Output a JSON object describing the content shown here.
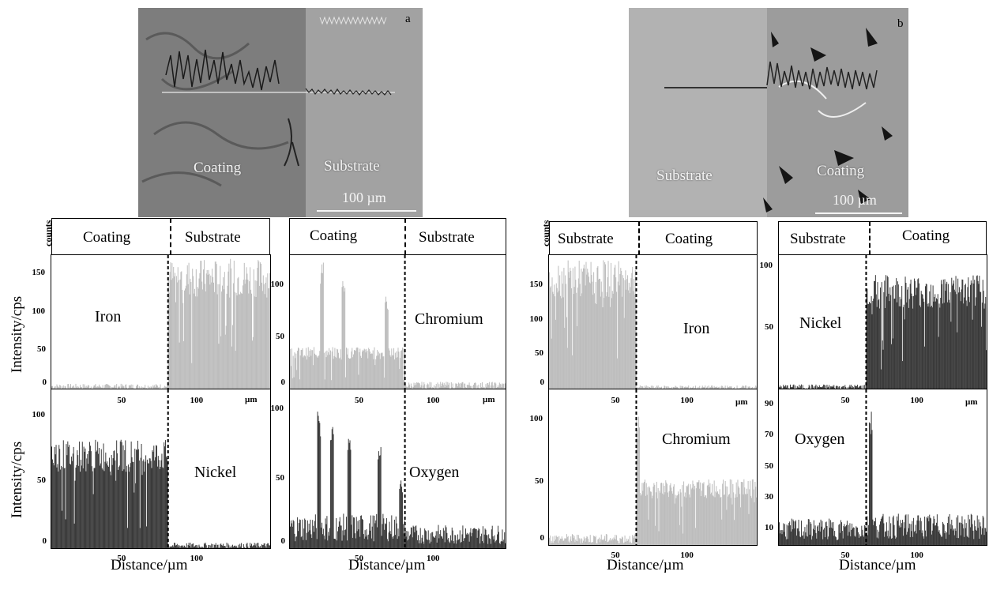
{
  "figures": {
    "a": {
      "letter": "a",
      "left_region": "Coating",
      "right_region": "Substrate",
      "scale_bar": "100 µm",
      "header_left": "Coating",
      "header_right": "Substrate",
      "header_left2": "Coating",
      "header_right2": "Substrate"
    },
    "b": {
      "letter": "b",
      "left_region": "Substrate",
      "right_region": "Coating",
      "scale_bar": "100 µm",
      "header_left": "Substrate",
      "header_right": "Coating",
      "header_left2": "Substrate",
      "header_right2": "Coating"
    }
  },
  "labels": {
    "counts": "counts",
    "ylabel": "Intensity/cps",
    "xlabel": "Distance/µm",
    "unit": "µm"
  },
  "colors": {
    "light": "#bdbdbd",
    "dark": "#3a3a3a"
  },
  "chart_data": [
    {
      "type": "bar",
      "panel": "a-iron",
      "series_name": "Iron",
      "xlim": [
        0,
        150
      ],
      "ylim": [
        0,
        175
      ],
      "x_ticks": [],
      "y_ticks": [
        "150",
        "100",
        "50",
        "0"
      ],
      "boundary_x": 80,
      "levels": [
        {
          "from": 0,
          "to": 80,
          "value": 4
        },
        {
          "from": 80,
          "to": 150,
          "value": 145
        }
      ],
      "color": "light"
    },
    {
      "type": "bar",
      "panel": "a-chromium",
      "series_name": "Chromium",
      "xlim": [
        0,
        150
      ],
      "ylim": [
        0,
        130
      ],
      "x_ticks": [],
      "y_ticks": [
        "100",
        "50",
        "0"
      ],
      "boundary_x": 80,
      "levels": [
        {
          "from": 0,
          "to": 80,
          "value": 35
        },
        {
          "from": 80,
          "to": 150,
          "value": 4
        }
      ],
      "peaks": [
        [
          22,
          125
        ],
        [
          37,
          115
        ],
        [
          67,
          95
        ]
      ],
      "color": "light"
    },
    {
      "type": "bar",
      "panel": "a-nickel",
      "series_name": "Nickel",
      "xlim": [
        0,
        150
      ],
      "ylim": [
        0,
        120
      ],
      "x_ticks": [
        "50",
        "100"
      ],
      "y_ticks": [
        "100",
        "50",
        "0"
      ],
      "boundary_x": 80,
      "levels": [
        {
          "from": 0,
          "to": 80,
          "value": 70
        },
        {
          "from": 80,
          "to": 150,
          "value": 2
        }
      ],
      "color": "dark"
    },
    {
      "type": "bar",
      "panel": "a-oxygen",
      "series_name": "Oxygen",
      "xlim": [
        0,
        150
      ],
      "ylim": [
        0,
        115
      ],
      "x_ticks": [
        "50",
        "100"
      ],
      "y_ticks": [
        "100",
        "50",
        "0"
      ],
      "boundary_x": 80,
      "levels": [
        {
          "from": 0,
          "to": 80,
          "value": 15
        },
        {
          "from": 80,
          "to": 150,
          "value": 10
        }
      ],
      "peaks": [
        [
          20,
          100
        ],
        [
          29,
          90
        ],
        [
          41,
          80
        ],
        [
          62,
          78
        ],
        [
          77,
          50
        ]
      ],
      "color": "dark"
    },
    {
      "type": "bar",
      "panel": "b-iron",
      "series_name": "Iron",
      "xlim": [
        0,
        150
      ],
      "ylim": [
        0,
        195
      ],
      "x_ticks": [],
      "y_ticks": [
        "150",
        "100",
        "50",
        "0"
      ],
      "boundary_x": 63,
      "levels": [
        {
          "from": 0,
          "to": 63,
          "value": 160
        },
        {
          "from": 63,
          "to": 150,
          "value": 3
        }
      ],
      "color": "light"
    },
    {
      "type": "bar",
      "panel": "b-nickel",
      "series_name": "Nickel",
      "xlim": [
        0,
        150
      ],
      "ylim": [
        0,
        110
      ],
      "x_ticks": [],
      "y_ticks": [
        "100",
        "50"
      ],
      "boundary_x": 63,
      "levels": [
        {
          "from": 0,
          "to": 63,
          "value": 2
        },
        {
          "from": 63,
          "to": 150,
          "value": 80
        }
      ],
      "color": "dark"
    },
    {
      "type": "bar",
      "panel": "b-chromium",
      "series_name": "Chromium",
      "xlim": [
        0,
        150
      ],
      "ylim": [
        0,
        125
      ],
      "x_ticks": [
        "50",
        "100"
      ],
      "y_ticks": [
        "100",
        "50",
        "0"
      ],
      "boundary_x": 63,
      "levels": [
        {
          "from": 0,
          "to": 63,
          "value": 5
        },
        {
          "from": 63,
          "to": 150,
          "value": 45
        }
      ],
      "peaks": [
        [
          64,
          105
        ]
      ],
      "color": "light"
    },
    {
      "type": "bar",
      "panel": "b-oxygen",
      "series_name": "Oxygen",
      "xlim": [
        0,
        150
      ],
      "ylim": [
        0,
        100
      ],
      "x_ticks": [
        "50",
        "100"
      ],
      "y_ticks": [
        "90",
        "70",
        "50",
        "30",
        "10"
      ],
      "boundary_x": 63,
      "levels": [
        {
          "from": 0,
          "to": 63,
          "value": 10
        },
        {
          "from": 63,
          "to": 150,
          "value": 12
        }
      ],
      "peaks": [
        [
          66,
          88
        ]
      ],
      "color": "dark"
    }
  ]
}
